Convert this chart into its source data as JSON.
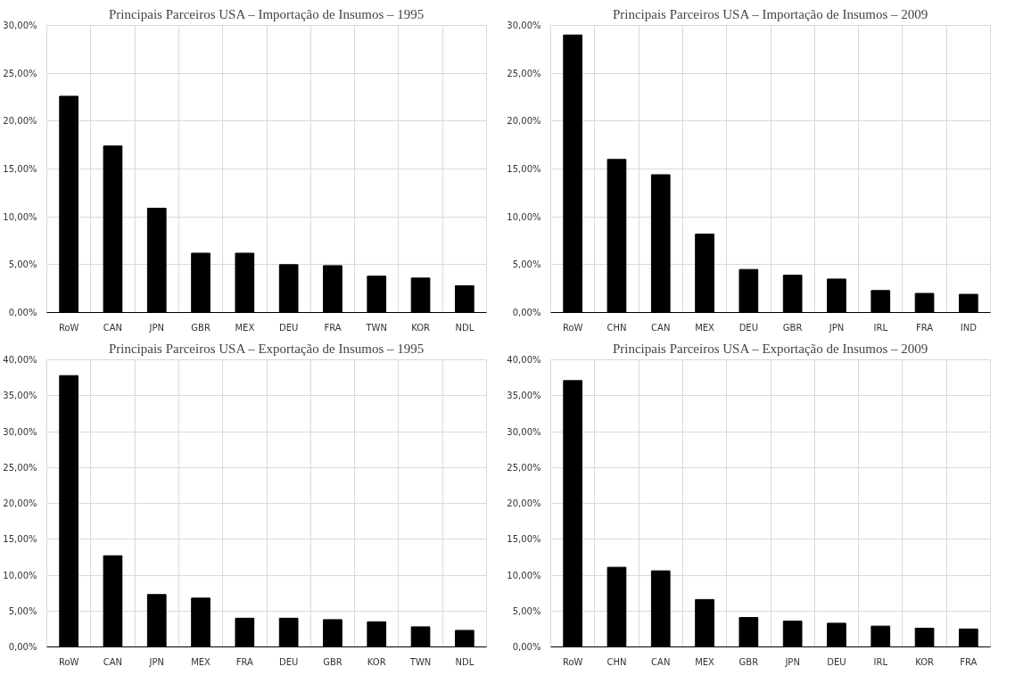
{
  "chart_data": [
    {
      "type": "bar",
      "title": "Principais Parceiros USA – Importação de Insumos – 1995",
      "categories": [
        "RoW",
        "CAN",
        "JPN",
        "GBR",
        "MEX",
        "DEU",
        "FRA",
        "TWN",
        "KOR",
        "NDL"
      ],
      "values": [
        22.6,
        17.4,
        10.9,
        6.2,
        6.2,
        5.0,
        4.9,
        3.8,
        3.6,
        2.8
      ],
      "color": "#000000",
      "ylim": [
        0,
        30
      ],
      "yticks": [
        {
          "value": 0,
          "label": "0,00%"
        },
        {
          "value": 5,
          "label": "5,00%"
        },
        {
          "value": 10,
          "label": "10,00%"
        },
        {
          "value": 15,
          "label": "15,00%"
        },
        {
          "value": 20,
          "label": "20,00%"
        },
        {
          "value": 25,
          "label": "25,00%"
        },
        {
          "value": 30,
          "label": "30,00%"
        }
      ],
      "grid": true
    },
    {
      "type": "bar",
      "title": "Principais Parceiros USA – Importação de Insumos – 2009",
      "categories": [
        "RoW",
        "CHN",
        "CAN",
        "MEX",
        "DEU",
        "GBR",
        "JPN",
        "IRL",
        "FRA",
        "IND"
      ],
      "values": [
        29.0,
        16.0,
        14.4,
        8.2,
        4.5,
        3.9,
        3.5,
        2.3,
        2.0,
        1.9
      ],
      "color": "#000000",
      "ylim": [
        0,
        30
      ],
      "yticks": [
        {
          "value": 0,
          "label": "0,00%"
        },
        {
          "value": 5,
          "label": "5,00%"
        },
        {
          "value": 10,
          "label": "10,00%"
        },
        {
          "value": 15,
          "label": "15,00%"
        },
        {
          "value": 20,
          "label": "20,00%"
        },
        {
          "value": 25,
          "label": "25,00%"
        },
        {
          "value": 30,
          "label": "30,00%"
        }
      ],
      "grid": true
    },
    {
      "type": "bar",
      "title": "Principais Parceiros USA – Exportação de Insumos – 1995",
      "categories": [
        "RoW",
        "CAN",
        "JPN",
        "MEX",
        "FRA",
        "DEU",
        "GBR",
        "KOR",
        "TWN",
        "NDL"
      ],
      "values": [
        37.8,
        12.7,
        7.3,
        6.8,
        4.0,
        4.0,
        3.8,
        3.5,
        2.8,
        2.3
      ],
      "color": "#000000",
      "ylim": [
        0,
        40
      ],
      "yticks": [
        {
          "value": 0,
          "label": "0,00%"
        },
        {
          "value": 5,
          "label": "5,00%"
        },
        {
          "value": 10,
          "label": "10,00%"
        },
        {
          "value": 15,
          "label": "15,00%"
        },
        {
          "value": 20,
          "label": "20,00%"
        },
        {
          "value": 25,
          "label": "25,00%"
        },
        {
          "value": 30,
          "label": "30,00%"
        },
        {
          "value": 35,
          "label": "35,00%"
        },
        {
          "value": 40,
          "label": "40,00%"
        }
      ],
      "grid": true
    },
    {
      "type": "bar",
      "title": "Principais Parceiros USA – Exportação de Insumos – 2009",
      "categories": [
        "RoW",
        "CHN",
        "CAN",
        "MEX",
        "GBR",
        "JPN",
        "DEU",
        "IRL",
        "KOR",
        "FRA"
      ],
      "values": [
        37.1,
        11.1,
        10.6,
        6.6,
        4.1,
        3.6,
        3.3,
        2.9,
        2.6,
        2.5
      ],
      "color": "#000000",
      "ylim": [
        0,
        40
      ],
      "yticks": [
        {
          "value": 0,
          "label": "0,00%"
        },
        {
          "value": 5,
          "label": "5,00%"
        },
        {
          "value": 10,
          "label": "10,00%"
        },
        {
          "value": 15,
          "label": "15,00%"
        },
        {
          "value": 20,
          "label": "20,00%"
        },
        {
          "value": 25,
          "label": "25,00%"
        },
        {
          "value": 30,
          "label": "30,00%"
        },
        {
          "value": 35,
          "label": "35,00%"
        },
        {
          "value": 40,
          "label": "40,00%"
        }
      ],
      "grid": true
    }
  ]
}
